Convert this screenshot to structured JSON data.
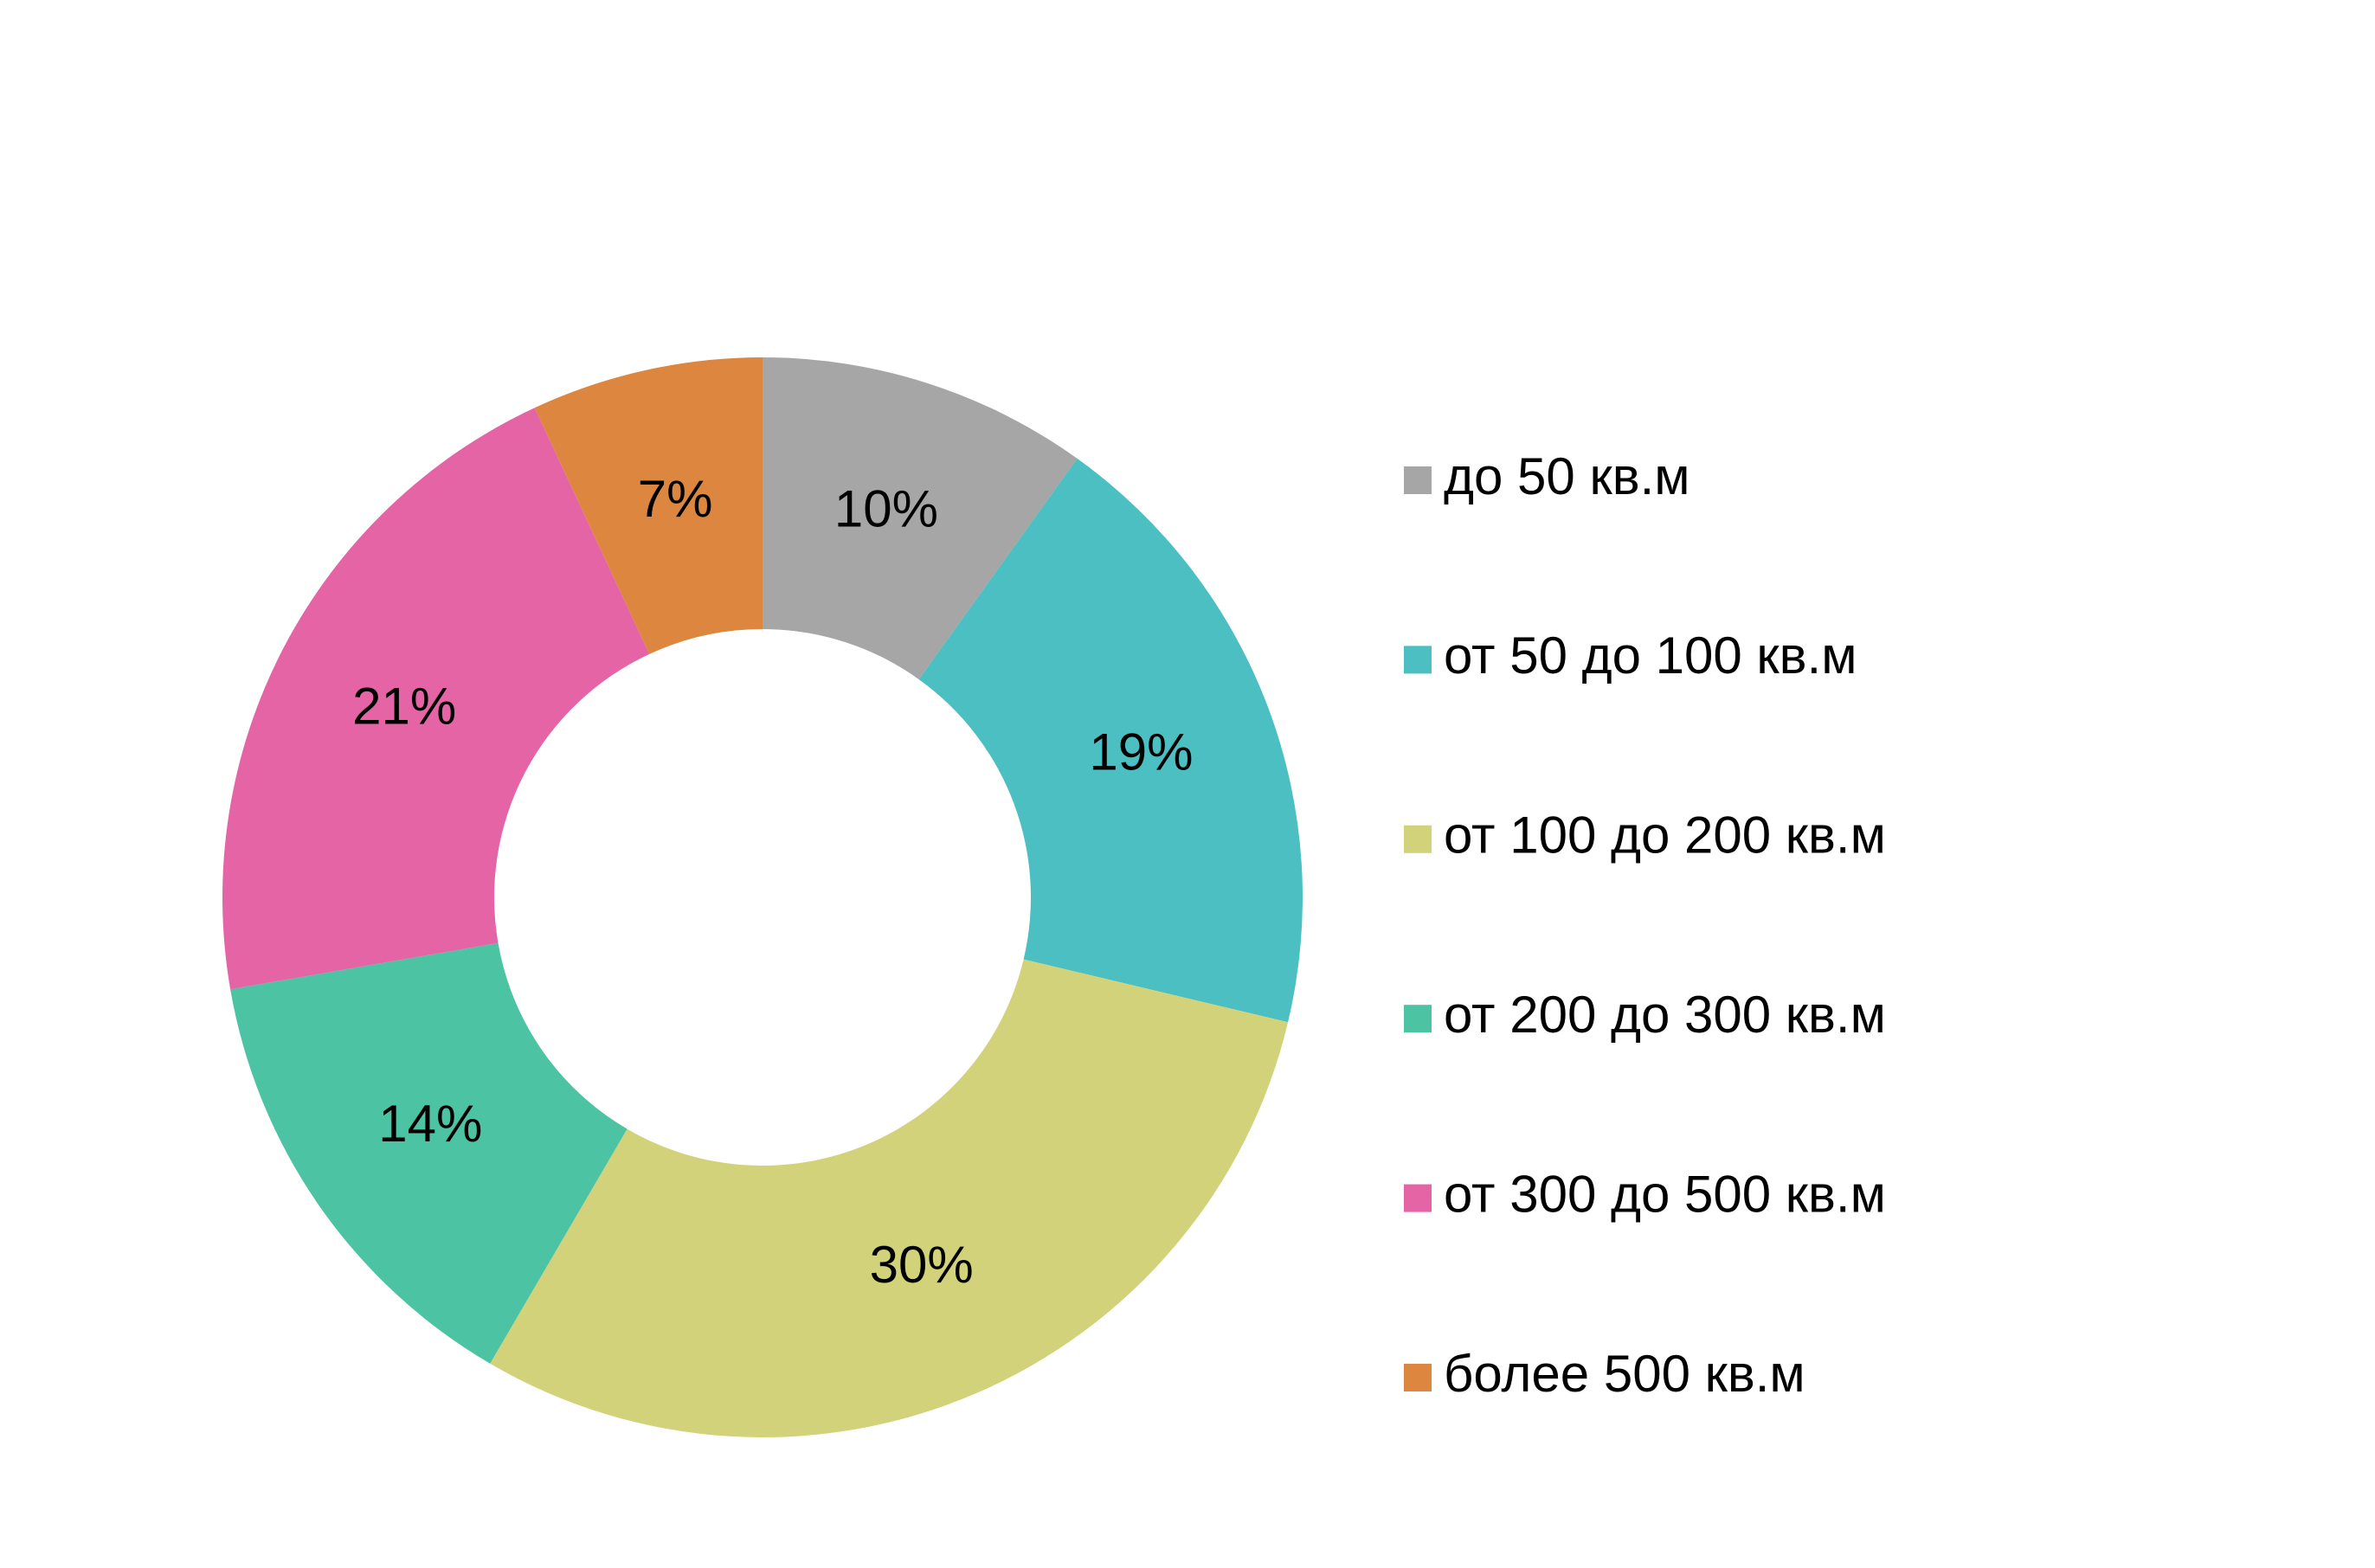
{
  "chart_data": {
    "type": "donut",
    "categories": [
      "до 50 кв.м",
      "от 50 до 100 кв.м",
      "от 100 до 200 кв.м",
      "от 200 до 300 кв.м",
      "от 300 до 500 кв.м",
      "более 500 кв.м"
    ],
    "values": [
      10,
      19,
      30,
      14,
      21,
      7
    ],
    "value_labels": [
      "10%",
      "19%",
      "30%",
      "14%",
      "21%",
      "7%"
    ],
    "colors": [
      "#a6a6a6",
      "#4bbfc1",
      "#d2d27a",
      "#4cc3a3",
      "#e464a6",
      "#dc863f"
    ],
    "legend": "right"
  }
}
